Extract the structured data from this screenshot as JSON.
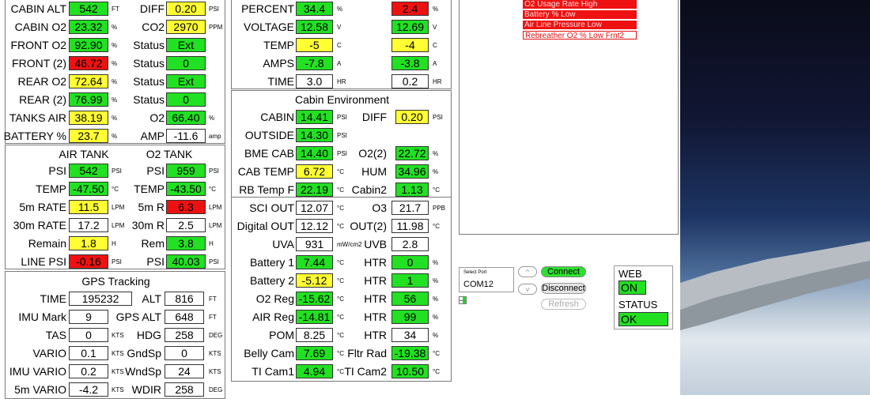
{
  "tanks": {
    "rows": [
      {
        "l1": "CABIN ALT",
        "v1": "542",
        "c1": "g",
        "u1": "FT",
        "l2": "DIFF",
        "v2": "0.20",
        "c2": "y",
        "u2": "PSI"
      },
      {
        "l1": "CABIN O2",
        "v1": "23.32",
        "c1": "g",
        "u1": "%",
        "l2": "CO2",
        "v2": "2970",
        "c2": "y",
        "u2": "PPM"
      },
      {
        "l1": "FRONT O2",
        "v1": "92.90",
        "c1": "g",
        "u1": "%",
        "l2": "Status",
        "v2": "Ext",
        "c2": "g",
        "u2": ""
      },
      {
        "l1": "FRONT (2)",
        "v1": "46.72",
        "c1": "r",
        "u1": "%",
        "l2": "Status",
        "v2": "0",
        "c2": "g",
        "u2": ""
      },
      {
        "l1": "REAR O2",
        "v1": "72.64",
        "c1": "y",
        "u1": "%",
        "l2": "Status",
        "v2": "Ext",
        "c2": "g",
        "u2": ""
      },
      {
        "l1": "REAR (2)",
        "v1": "76.99",
        "c1": "g",
        "u1": "%",
        "l2": "Status",
        "v2": "0",
        "c2": "g",
        "u2": ""
      },
      {
        "l1": "TANKS AIR",
        "v1": "38.19",
        "c1": "y",
        "u1": "%",
        "l2": "O2",
        "v2": "66.40",
        "c2": "g",
        "u2": "%"
      },
      {
        "l1": "BATTERY %",
        "v1": "23.7",
        "c1": "y",
        "u1": "%",
        "l2": "AMP",
        "v2": "-11.6",
        "c2": "w",
        "u2": "amp"
      }
    ]
  },
  "air_o2": {
    "title1": "AIR TANK",
    "title2": "O2 TANK",
    "rows": [
      {
        "l1": "PSI",
        "v1": "542",
        "c1": "g",
        "u1": "PSI",
        "l2": "PSI",
        "v2": "959",
        "c2": "g",
        "u2": "PSI"
      },
      {
        "l1": "TEMP",
        "v1": "-47.50",
        "c1": "g",
        "u1": "°C",
        "l2": "TEMP",
        "v2": "-43.50",
        "c2": "g",
        "u2": "°C"
      },
      {
        "l1": "5m RATE",
        "v1": "11.5",
        "c1": "y",
        "u1": "LPM",
        "l2": "5m R",
        "v2": "6.3",
        "c2": "r",
        "u2": "LPM"
      },
      {
        "l1": "30m RATE",
        "v1": "17.2",
        "c1": "w",
        "u1": "LPM",
        "l2": "30m R",
        "v2": "2.5",
        "c2": "w",
        "u2": "LPM"
      },
      {
        "l1": "Remain",
        "v1": "1.8",
        "c1": "y",
        "u1": "H",
        "l2": "Rem",
        "v2": "3.8",
        "c2": "g",
        "u2": "H"
      },
      {
        "l1": "LINE PSI",
        "v1": "-0.16",
        "c1": "r",
        "u1": "PSI",
        "l2": "PSI",
        "v2": "40.03",
        "c2": "g",
        "u2": "PSI"
      }
    ]
  },
  "gps": {
    "title": "GPS Tracking",
    "rows": [
      {
        "l1": "TIME",
        "v1": "195232",
        "c1": "w",
        "u1": "",
        "l2": "ALT",
        "v2": "816",
        "c2": "w",
        "u2": "FT"
      },
      {
        "l1": "IMU Mark",
        "v1": "9",
        "c1": "w",
        "u1": "",
        "l2": "GPS ALT",
        "v2": "648",
        "c2": "w",
        "u2": "FT"
      },
      {
        "l1": "TAS",
        "v1": "0",
        "c1": "w",
        "u1": "KTS",
        "l2": "HDG",
        "v2": "258",
        "c2": "w",
        "u2": "DEG"
      },
      {
        "l1": "VARIO",
        "v1": "0.1",
        "c1": "w",
        "u1": "KTS",
        "l2": "GndSp",
        "v2": "0",
        "c2": "w",
        "u2": "KTS"
      },
      {
        "l1": "IMU VARIO",
        "v1": "0.2",
        "c1": "w",
        "u1": "KTS",
        "l2": "WndSp",
        "v2": "24",
        "c2": "w",
        "u2": "KTS"
      },
      {
        "l1": "5m VARIO",
        "v1": "-4.2",
        "c1": "w",
        "u1": "KTS",
        "l2": "WDIR",
        "v2": "258",
        "c2": "w",
        "u2": "DEG"
      }
    ]
  },
  "battery": {
    "rows": [
      {
        "l1": "PERCENT",
        "v1": "34.4",
        "c1": "g",
        "u1": "%",
        "v2": "2.4",
        "c2": "r",
        "u2": "%"
      },
      {
        "l1": "VOLTAGE",
        "v1": "12.58",
        "c1": "g",
        "u1": "V",
        "v2": "12.69",
        "c2": "g",
        "u2": "V"
      },
      {
        "l1": "TEMP",
        "v1": "-5",
        "c1": "y",
        "u1": "C",
        "v2": "-4",
        "c2": "y",
        "u2": "C"
      },
      {
        "l1": "AMPS",
        "v1": "-7.8",
        "c1": "g",
        "u1": "A",
        "v2": "-3.8",
        "c2": "g",
        "u2": "A"
      },
      {
        "l1": "TIME",
        "v1": "3.0",
        "c1": "w",
        "u1": "HR",
        "v2": "0.2",
        "c2": "w",
        "u2": "HR"
      }
    ]
  },
  "cabin_env": {
    "title": "Cabin Environment",
    "rows": [
      {
        "l1": "CABIN",
        "v1": "14.41",
        "c1": "g",
        "u1": "PSI",
        "l2": "DIFF",
        "v2": "0.20",
        "c2": "y",
        "u2": "PSI"
      },
      {
        "l1": "OUTSIDE",
        "v1": "14.30",
        "c1": "g",
        "u1": "PSI",
        "l2": "",
        "v2": "",
        "c2": "",
        "u2": ""
      },
      {
        "l1": "BME CAB",
        "v1": "14.40",
        "c1": "g",
        "u1": "PSI",
        "l2": "O2(2)",
        "v2": "22.72",
        "c2": "g",
        "u2": "%"
      },
      {
        "l1": "CAB TEMP",
        "v1": "6.72",
        "c1": "y",
        "u1": "°C",
        "l2": "HUM",
        "v2": "34.96",
        "c2": "g",
        "u2": "%"
      },
      {
        "l1": "RB Temp F",
        "v1": "22.19",
        "c1": "g",
        "u1": "°C",
        "l2": "Cabin2",
        "v2": "1.13",
        "c2": "g",
        "u2": "°C"
      }
    ]
  },
  "sensors": {
    "rows": [
      {
        "l1": "SCI OUT",
        "v1": "12.07",
        "c1": "w",
        "u1": "°C",
        "l2": "O3",
        "v2": "21.7",
        "c2": "w",
        "u2": "PPB"
      },
      {
        "l1": "Digital OUT",
        "v1": "12.12",
        "c1": "w",
        "u1": "°C",
        "l2": "OUT(2)",
        "v2": "11.98",
        "c2": "w",
        "u2": "°C"
      },
      {
        "l1": "UVA",
        "v1": "931",
        "c1": "w",
        "u1": "mW/cm2",
        "l2": "UVB",
        "v2": "2.8",
        "c2": "w",
        "u2": ""
      },
      {
        "l1": "Battery 1",
        "v1": "7.44",
        "c1": "g",
        "u1": "°C",
        "l2": "HTR",
        "v2": "0",
        "c2": "g",
        "u2": "%"
      },
      {
        "l1": "Battery 2",
        "v1": "-5.12",
        "c1": "y",
        "u1": "°C",
        "l2": "HTR",
        "v2": "1",
        "c2": "g",
        "u2": "%"
      },
      {
        "l1": "O2 Reg",
        "v1": "-15.62",
        "c1": "g",
        "u1": "°C",
        "l2": "HTR",
        "v2": "56",
        "c2": "g",
        "u2": "%"
      },
      {
        "l1": "AIR Reg",
        "v1": "-14.81",
        "c1": "g",
        "u1": "°C",
        "l2": "HTR",
        "v2": "99",
        "c2": "g",
        "u2": "%"
      },
      {
        "l1": "POM",
        "v1": "8.25",
        "c1": "w",
        "u1": "°C",
        "l2": "HTR",
        "v2": "34",
        "c2": "w",
        "u2": "%"
      },
      {
        "l1": "Belly Cam",
        "v1": "7.69",
        "c1": "g",
        "u1": "°C",
        "l2": "Fltr Rad",
        "v2": "-19.38",
        "c2": "g",
        "u2": "°C"
      },
      {
        "l1": "TI Cam1",
        "v1": "4.94",
        "c1": "g",
        "u1": "°C",
        "l2": "TI Cam2",
        "v2": "10.50",
        "c2": "g",
        "u2": "°C"
      }
    ]
  },
  "alarms": {
    "items": [
      {
        "text": "O2 Usage Rate High",
        "style": "red"
      },
      {
        "text": "Battery % Low",
        "style": "red"
      },
      {
        "text": "Air Line Pressure Low",
        "style": "red"
      },
      {
        "text": "Rebreather O2 % Low Frnt2",
        "style": "outline"
      }
    ]
  },
  "port": {
    "label": "Select Port",
    "value": "COM12",
    "up": "^",
    "down": "v",
    "connect": "Connect",
    "disconnect": "Disconnect",
    "refresh": "Refresh"
  },
  "web_status": {
    "web_label": "WEB",
    "web_value": "ON",
    "status_label": "STATUS",
    "status_value": "OK"
  },
  "colors": {
    "green": "#22e022",
    "yellow": "#ffff33",
    "red": "#ee1111",
    "connect_green": "#2ee02e"
  }
}
